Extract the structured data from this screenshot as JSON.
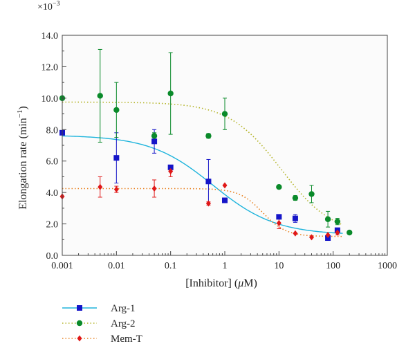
{
  "chart_data": {
    "type": "scatter",
    "xscale": "log",
    "xlim": [
      0.001,
      1000
    ],
    "ylim": [
      0.0,
      14.0
    ],
    "y_multiplier_label": "×10",
    "y_multiplier_exp": "−3",
    "xlabel_main": "[Inhibitor] (",
    "xlabel_mu": "μ",
    "xlabel_end": "M)",
    "ylabel_main": "Elongation rate (min",
    "ylabel_exp": "−1",
    "ylabel_end": ")",
    "x_ticks": [
      {
        "value": 0.001,
        "label": "0.001"
      },
      {
        "value": 0.01,
        "label": "0.01"
      },
      {
        "value": 0.1,
        "label": "0.1"
      },
      {
        "value": 1,
        "label": "1"
      },
      {
        "value": 10,
        "label": "10"
      },
      {
        "value": 100,
        "label": "100"
      },
      {
        "value": 1000,
        "label": "1000"
      }
    ],
    "y_ticks": [
      {
        "value": 0,
        "label": "0.0"
      },
      {
        "value": 2,
        "label": "2.0"
      },
      {
        "value": 4,
        "label": "4.0"
      },
      {
        "value": 6,
        "label": "6.0"
      },
      {
        "value": 8,
        "label": "8.0"
      },
      {
        "value": 10,
        "label": "10.0"
      },
      {
        "value": 12,
        "label": "12.0"
      },
      {
        "value": 14,
        "label": "14.0"
      }
    ],
    "grid": false,
    "legend_position": "bottom-left, below plot",
    "series": [
      {
        "name": "Arg-1",
        "color": "#1515c8",
        "line_color": "#1eb4dc",
        "line_style": "solid",
        "marker": "square",
        "points": [
          {
            "x": 0.001,
            "y": 7.8,
            "err": 0.0
          },
          {
            "x": 0.01,
            "y": 6.2,
            "err": 1.6
          },
          {
            "x": 0.05,
            "y": 7.25,
            "err": 0.75
          },
          {
            "x": 0.1,
            "y": 5.6,
            "err": 0.1
          },
          {
            "x": 0.5,
            "y": 4.7,
            "err": 1.4
          },
          {
            "x": 1,
            "y": 3.5,
            "err": 0.0
          },
          {
            "x": 10,
            "y": 2.45,
            "err": 0.1
          },
          {
            "x": 20,
            "y": 2.35,
            "err": 0.25
          },
          {
            "x": 80,
            "y": 1.1,
            "err": 0.1
          },
          {
            "x": 120,
            "y": 1.6,
            "err": 0.1
          }
        ],
        "fit": {
          "top": 7.65,
          "bottom": 1.3,
          "ec50": 0.6,
          "hill": 0.75
        }
      },
      {
        "name": "Arg-2",
        "color": "#0a8a2a",
        "line_color": "#b4b428",
        "line_style": "dotted",
        "marker": "circle",
        "points": [
          {
            "x": 0.001,
            "y": 10.0,
            "err": 0.0
          },
          {
            "x": 0.005,
            "y": 10.15,
            "err": 2.95
          },
          {
            "x": 0.01,
            "y": 9.25,
            "err": 1.75
          },
          {
            "x": 0.05,
            "y": 7.6,
            "err": 0.2
          },
          {
            "x": 0.1,
            "y": 10.3,
            "err": 2.6
          },
          {
            "x": 0.5,
            "y": 7.6,
            "err": 0.15
          },
          {
            "x": 1,
            "y": 9.0,
            "err": 1.0
          },
          {
            "x": 10,
            "y": 4.35,
            "err": 0.1
          },
          {
            "x": 20,
            "y": 3.65,
            "err": 0.15
          },
          {
            "x": 40,
            "y": 3.9,
            "err": 0.55
          },
          {
            "x": 80,
            "y": 2.3,
            "err": 0.5
          },
          {
            "x": 120,
            "y": 2.15,
            "err": 0.2
          },
          {
            "x": 200,
            "y": 1.45,
            "err": 0.0
          }
        ],
        "fit": {
          "top": 9.75,
          "bottom": 1.2,
          "ec50": 11.0,
          "hill": 0.9
        }
      },
      {
        "name": "Mem-T",
        "color": "#e01818",
        "line_color": "#e8801e",
        "line_style": "dotted",
        "marker": "diamond",
        "points": [
          {
            "x": 0.001,
            "y": 3.75,
            "err": 0.0
          },
          {
            "x": 0.005,
            "y": 4.35,
            "err": 0.65
          },
          {
            "x": 0.01,
            "y": 4.2,
            "err": 0.2
          },
          {
            "x": 0.05,
            "y": 4.25,
            "err": 0.55
          },
          {
            "x": 0.1,
            "y": 5.35,
            "err": 0.35
          },
          {
            "x": 0.5,
            "y": 3.3,
            "err": 0.1
          },
          {
            "x": 1,
            "y": 4.45,
            "err": 0.0
          },
          {
            "x": 10,
            "y": 2.05,
            "err": 0.35
          },
          {
            "x": 20,
            "y": 1.4,
            "err": 0.0
          },
          {
            "x": 40,
            "y": 1.15,
            "err": 0.0
          },
          {
            "x": 80,
            "y": 1.3,
            "err": 0.0
          },
          {
            "x": 120,
            "y": 1.45,
            "err": 0.15
          }
        ],
        "fit": {
          "top": 4.25,
          "bottom": 1.2,
          "ec50": 5.0,
          "hill": 2.0
        }
      }
    ]
  }
}
